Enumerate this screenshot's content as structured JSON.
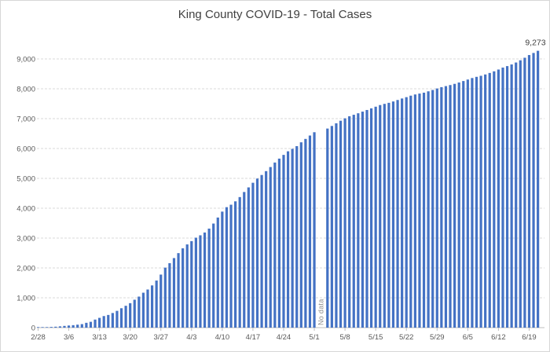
{
  "title": "King County COVID-19 - Total Cases",
  "colors": {
    "bar": "#4472C4",
    "gridline": "#D9D9D9",
    "axis_line": "#BFBFBF",
    "tick_label": "#595959",
    "title_text": "#404040",
    "data_label": "#404040",
    "no_data_text": "#8C8C8C",
    "background": "#FFFFFF",
    "border": "#D7D7D7"
  },
  "chart_data": {
    "type": "bar",
    "title": "King County COVID-19 - Total Cases",
    "xlabel": "",
    "ylabel": "",
    "ylim": [
      0,
      9500
    ],
    "grid": "horizontal-dashed",
    "legend": "none",
    "final_value": 9273,
    "final_value_label": "9,273",
    "no_data": {
      "label": "No data",
      "indices": [
        64,
        65
      ],
      "dates": [
        "5/2",
        "5/3"
      ]
    },
    "y_ticks": [
      {
        "value": 0,
        "label": "0"
      },
      {
        "value": 1000,
        "label": "1,000"
      },
      {
        "value": 2000,
        "label": "2,000"
      },
      {
        "value": 3000,
        "label": "3,000"
      },
      {
        "value": 4000,
        "label": "4,000"
      },
      {
        "value": 5000,
        "label": "5,000"
      },
      {
        "value": 6000,
        "label": "6,000"
      },
      {
        "value": 7000,
        "label": "7,000"
      },
      {
        "value": 8000,
        "label": "8,000"
      },
      {
        "value": 9000,
        "label": "9,000"
      }
    ],
    "x_ticks": [
      {
        "label": "2/28",
        "index": 0
      },
      {
        "label": "3/6",
        "index": 7
      },
      {
        "label": "3/13",
        "index": 14
      },
      {
        "label": "3/20",
        "index": 21
      },
      {
        "label": "3/27",
        "index": 28
      },
      {
        "label": "4/3",
        "index": 35
      },
      {
        "label": "4/10",
        "index": 42
      },
      {
        "label": "4/17",
        "index": 49
      },
      {
        "label": "4/24",
        "index": 56
      },
      {
        "label": "5/1",
        "index": 63
      },
      {
        "label": "5/8",
        "index": 70
      },
      {
        "label": "5/15",
        "index": 77
      },
      {
        "label": "5/22",
        "index": 84
      },
      {
        "label": "5/29",
        "index": 91
      },
      {
        "label": "6/5",
        "index": 98
      },
      {
        "label": "6/12",
        "index": 105
      },
      {
        "label": "6/19",
        "index": 112
      }
    ],
    "x": [
      "2/28",
      "2/29",
      "3/1",
      "3/2",
      "3/3",
      "3/4",
      "3/5",
      "3/6",
      "3/7",
      "3/8",
      "3/9",
      "3/10",
      "3/11",
      "3/12",
      "3/13",
      "3/14",
      "3/15",
      "3/16",
      "3/17",
      "3/18",
      "3/19",
      "3/20",
      "3/21",
      "3/22",
      "3/23",
      "3/24",
      "3/25",
      "3/26",
      "3/27",
      "3/28",
      "3/29",
      "3/30",
      "3/31",
      "4/1",
      "4/2",
      "4/3",
      "4/4",
      "4/5",
      "4/6",
      "4/7",
      "4/8",
      "4/9",
      "4/10",
      "4/11",
      "4/12",
      "4/13",
      "4/14",
      "4/15",
      "4/16",
      "4/17",
      "4/18",
      "4/19",
      "4/20",
      "4/21",
      "4/22",
      "4/23",
      "4/24",
      "4/25",
      "4/26",
      "4/27",
      "4/28",
      "4/29",
      "4/30",
      "5/1",
      "5/2",
      "5/3",
      "5/4",
      "5/5",
      "5/6",
      "5/7",
      "5/8",
      "5/9",
      "5/10",
      "5/11",
      "5/12",
      "5/13",
      "5/14",
      "5/15",
      "5/16",
      "5/17",
      "5/18",
      "5/19",
      "5/20",
      "5/21",
      "5/22",
      "5/23",
      "5/24",
      "5/25",
      "5/26",
      "5/27",
      "5/28",
      "5/29",
      "5/30",
      "5/31",
      "6/1",
      "6/2",
      "6/3",
      "6/4",
      "6/5",
      "6/6",
      "6/7",
      "6/8",
      "6/9",
      "6/10",
      "6/11",
      "6/12",
      "6/13",
      "6/14",
      "6/15",
      "6/16",
      "6/17",
      "6/18",
      "6/19",
      "6/20",
      "6/21"
    ],
    "values": [
      8,
      12,
      16,
      24,
      31,
      43,
      58,
      71,
      83,
      100,
      118,
      162,
      195,
      270,
      328,
      388,
      425,
      490,
      562,
      650,
      732,
      820,
      935,
      1040,
      1170,
      1277,
      1414,
      1577,
      1777,
      2010,
      2160,
      2330,
      2496,
      2656,
      2787,
      2898,
      3013,
      3093,
      3186,
      3317,
      3486,
      3688,
      3886,
      4035,
      4117,
      4230,
      4373,
      4543,
      4697,
      4852,
      4992,
      5113,
      5242,
      5379,
      5530,
      5661,
      5786,
      5906,
      5987,
      6079,
      6207,
      6321,
      6434,
      6545,
      null,
      null,
      6668,
      6755,
      6845,
      6930,
      7010,
      7080,
      7130,
      7180,
      7235,
      7290,
      7345,
      7400,
      7455,
      7495,
      7530,
      7575,
      7625,
      7675,
      7720,
      7770,
      7810,
      7840,
      7870,
      7915,
      7960,
      8010,
      8055,
      8090,
      8125,
      8165,
      8210,
      8260,
      8310,
      8360,
      8400,
      8435,
      8480,
      8530,
      8585,
      8645,
      8710,
      8760,
      8815,
      8880,
      8955,
      9040,
      9130,
      9200,
      9273
    ]
  }
}
